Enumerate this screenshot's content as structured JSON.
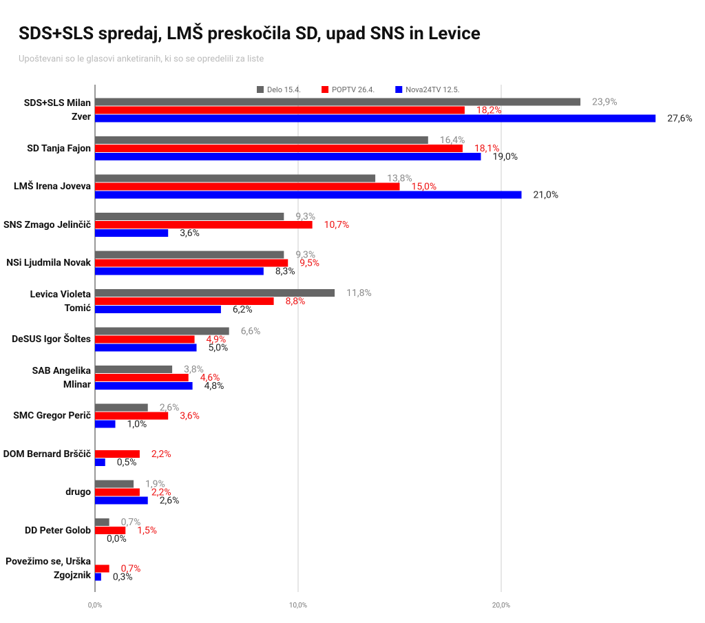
{
  "chart_data": {
    "type": "hbar",
    "title": "SDS+SLS spredaj, LMŠ preskočila SD, upad SNS in Levice",
    "subtitle": "Upoštevani so le glasovi anketiranih, ki so se opredelili za liste",
    "categories": [
      "SDS+SLS Milan Zver",
      "SD Tanja Fajon",
      "LMŠ Irena Joveva",
      "SNS Zmago Jelinčič",
      "NSi Ljudmila Novak",
      "Levica Violeta Tomić",
      "DeSUS Igor Šoltes",
      "SAB Angelika Mlinar",
      "SMC Gregor Perič",
      "DOM Bernard Brščič",
      "drugo",
      "DD Peter Golob",
      "Povežimo se, Urška Zgojznik"
    ],
    "series": [
      {
        "name": "Delo 15.4.",
        "color": "#666666",
        "label_color": "#8a8a8a",
        "values": [
          23.9,
          16.4,
          13.8,
          9.3,
          9.3,
          11.8,
          6.6,
          3.8,
          2.6,
          null,
          1.9,
          0.7,
          null
        ],
        "value_labels": [
          "23,9%",
          "16,4%",
          "13,8%",
          "9,3%",
          "9,3%",
          "11,8%",
          "6,6%",
          "3,8%",
          "2,6%",
          null,
          "1,9%",
          "0,7%",
          null
        ]
      },
      {
        "name": "POPTV 26.4.",
        "color": "#ff0000",
        "label_color": "#ee1111",
        "values": [
          18.2,
          18.1,
          15.0,
          10.7,
          9.5,
          8.8,
          4.9,
          4.6,
          3.6,
          2.2,
          2.2,
          1.5,
          0.7
        ],
        "value_labels": [
          "18,2%",
          "18,1%",
          "15,0%",
          "10,7%",
          "9,5%",
          "8,8%",
          "4,9%",
          "4,6%",
          "3,6%",
          "2,2%",
          "2,2%",
          "1,5%",
          "0,7%"
        ]
      },
      {
        "name": "Nova24TV 12.5.",
        "color": "#0000ff",
        "label_color": "#222222",
        "values": [
          27.6,
          19.0,
          21.0,
          3.6,
          8.3,
          6.2,
          5.0,
          4.8,
          1.0,
          0.5,
          2.6,
          0.0,
          0.3
        ],
        "value_labels": [
          "27,6%",
          "19,0%",
          "21,0%",
          "3,6%",
          "8,3%",
          "6,2%",
          "5,0%",
          "4,8%",
          "1,0%",
          "0,5%",
          "2,6%",
          "0,0%",
          "0,3%"
        ]
      }
    ],
    "xlim": [
      0,
      30
    ],
    "xticks": [
      {
        "value": 0,
        "label": "0,0%"
      },
      {
        "value": 10,
        "label": "10,0%"
      },
      {
        "value": 20,
        "label": "20,0%"
      }
    ],
    "grid": true,
    "legend": "top"
  }
}
